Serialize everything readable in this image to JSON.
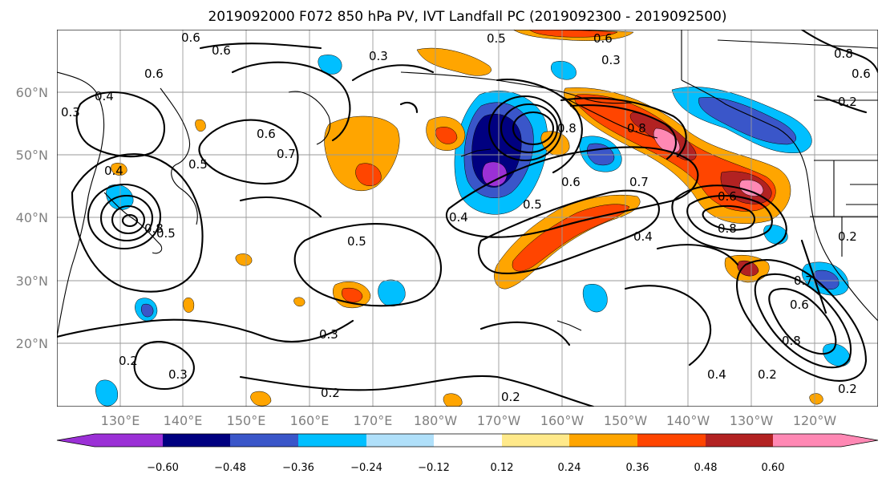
{
  "title": "2019092000 F072 850 hPa PV, IVT Landfall PC (2019092300 - 2019092500)",
  "lat_labels": [
    "60°N",
    "50°N",
    "40°N",
    "30°N",
    "20°N"
  ],
  "lon_labels": [
    "130°E",
    "140°E",
    "150°E",
    "160°E",
    "170°E",
    "180°W",
    "170°W",
    "160°W",
    "150°W",
    "140°W",
    "130°W",
    "120°W"
  ],
  "colorbar": {
    "ticks": [
      "−0.60",
      "−0.48",
      "−0.36",
      "−0.24",
      "−0.12",
      "0.12",
      "0.24",
      "0.36",
      "0.48",
      "0.60"
    ],
    "colors": [
      "#9b30d6",
      "#000080",
      "#3a56c9",
      "#00bfff",
      "#b0e0fa",
      "#ffffff",
      "#ffe98a",
      "#ffa500",
      "#ff4500",
      "#b22222",
      "#ff88b4"
    ]
  },
  "contour_labels": [
    "0.6",
    "0.6",
    "0.5",
    "0.6",
    "0.3",
    "0.6",
    "0.3",
    "0.8",
    "0.2",
    "0.6",
    "0.4",
    "0.3",
    "0.6",
    "0.7",
    "0.5",
    "0.4",
    "0.5",
    "0.8",
    "0.7",
    "0.8",
    "0.5",
    "0.4",
    "0.6",
    "0.8",
    "0.8",
    "0.6",
    "0.2",
    "0.4",
    "0.5",
    "0.7",
    "0.6",
    "0.8",
    "0.3",
    "0.2",
    "0.3",
    "0.2",
    "0.2",
    "0.4",
    "0.2",
    "0.2"
  ],
  "colors": {
    "land_outline": "#000000",
    "grid": "#9a9a9a",
    "contour": "#000000"
  }
}
